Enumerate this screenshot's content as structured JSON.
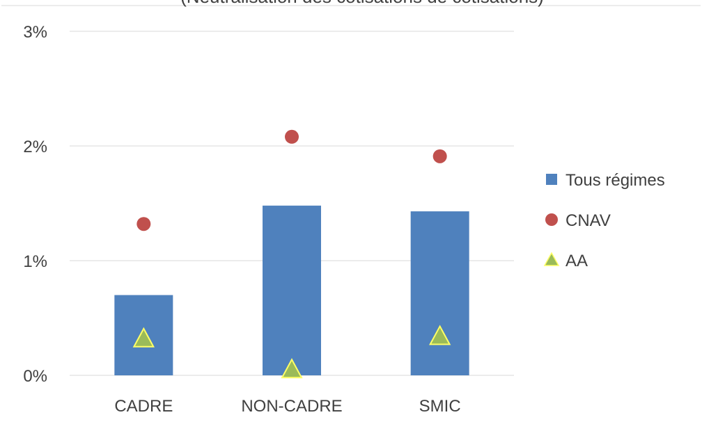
{
  "chart_data": {
    "type": "bar",
    "title": "(Neutralisation des cotisations de cotisations)",
    "categories": [
      "CADRE",
      "NON-CADRE",
      "SMIC"
    ],
    "ylim": [
      0,
      3
    ],
    "yticks": [
      0,
      1,
      2,
      3
    ],
    "ytick_labels": [
      "0%",
      "1%",
      "2%",
      "3%"
    ],
    "grid": true,
    "legend_position": "right",
    "series": [
      {
        "name": "Tous régimes",
        "kind": "bar",
        "marker": "square",
        "color": "#4f81bd",
        "values": [
          0.7,
          1.48,
          1.43
        ]
      },
      {
        "name": "CNAV",
        "kind": "point",
        "marker": "circle",
        "color": "#c0504d",
        "values": [
          1.32,
          2.08,
          1.91
        ]
      },
      {
        "name": "AA",
        "kind": "point",
        "marker": "triangle",
        "color": "#9bbb59",
        "values": [
          0.31,
          0.04,
          0.33
        ]
      }
    ]
  }
}
